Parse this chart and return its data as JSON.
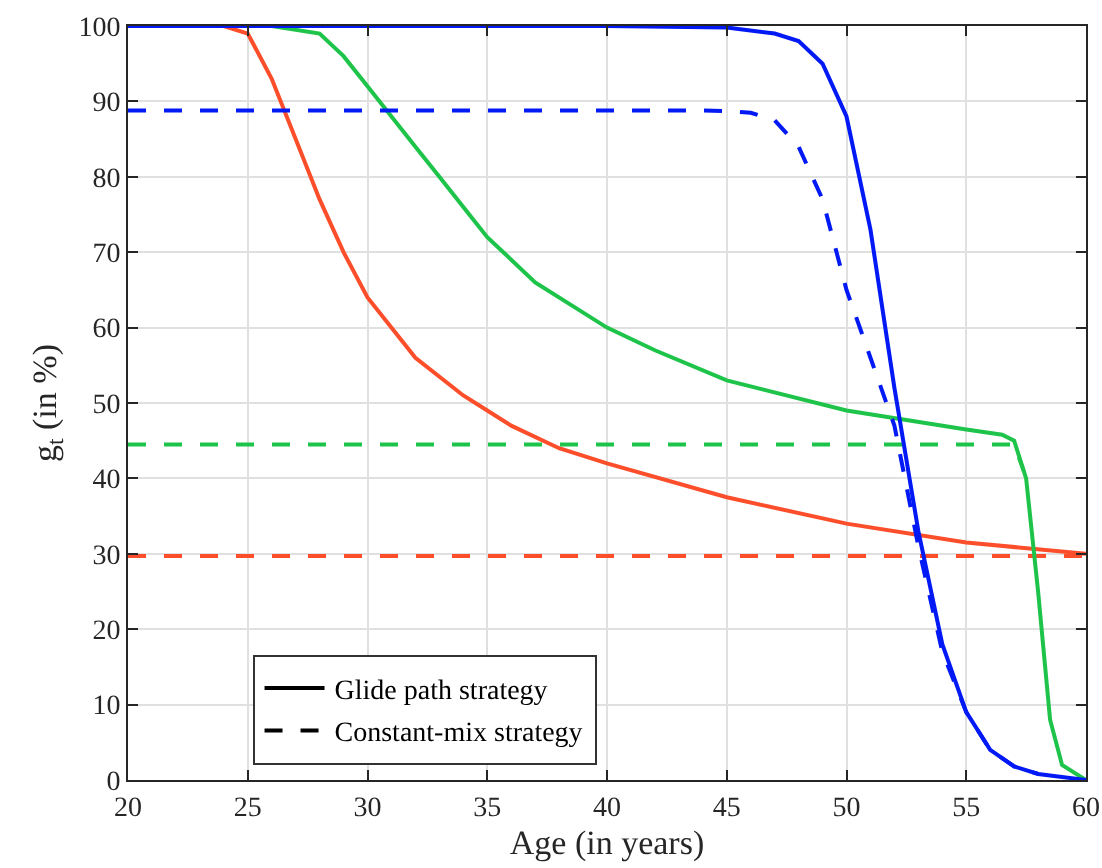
{
  "chart_data": {
    "type": "line",
    "xlabel": "Age (in years)",
    "ylabel": "g$_{t}$ (in %)",
    "xlim": [
      20,
      60
    ],
    "xticks": [
      20,
      25,
      30,
      35,
      40,
      45,
      50,
      55,
      60
    ],
    "ylim": [
      0,
      100
    ],
    "yticks": [
      0,
      10,
      20,
      30,
      40,
      50,
      60,
      70,
      80,
      90,
      100
    ],
    "grid": true,
    "legend": "bottom left",
    "marker": "none",
    "series": [
      {
        "color": "#fc4e2a",
        "line_style": "solid",
        "x": [
          20,
          24,
          25,
          26,
          27,
          28,
          29,
          30,
          32,
          34,
          35,
          36,
          38,
          40,
          45,
          50,
          55,
          60
        ],
        "values": [
          100,
          100,
          99,
          93,
          85,
          77,
          70,
          64,
          56,
          51,
          49,
          47,
          44,
          42,
          37.5,
          34,
          31.5,
          30
        ]
      },
      {
        "color": "#fc4e2a",
        "line_style": "dashed",
        "x": [
          20,
          60
        ],
        "values": [
          29.7,
          29.7
        ]
      },
      {
        "color": "#1ec44a",
        "line_style": "solid",
        "x": [
          20,
          26,
          28,
          29,
          30,
          31,
          32,
          33,
          34,
          35,
          37,
          40,
          42,
          45,
          50,
          55,
          56.5,
          57,
          57.5,
          58,
          58.5,
          59,
          60
        ],
        "values": [
          100,
          100,
          99,
          96,
          92,
          88,
          84,
          80,
          76,
          72,
          66,
          60,
          57,
          53,
          49,
          46.5,
          45.8,
          45,
          40,
          25,
          8,
          2,
          0
        ]
      },
      {
        "color": "#1ec44a",
        "line_style": "dashed",
        "x": [
          20,
          57,
          57.4
        ],
        "values": [
          44.5,
          44.5,
          41
        ]
      },
      {
        "color": "#0019f5",
        "line_style": "solid",
        "x": [
          20,
          40,
          45,
          47,
          48,
          49,
          50,
          51,
          52,
          53,
          54,
          55,
          56,
          57,
          58,
          60
        ],
        "values": [
          100,
          100,
          99.8,
          99,
          98,
          95,
          88,
          73,
          52,
          33,
          18,
          9,
          4,
          1.8,
          0.8,
          0
        ]
      },
      {
        "color": "#0019f5",
        "line_style": "dashed",
        "x": [
          20,
          44,
          45,
          46,
          47,
          48,
          49,
          50,
          51,
          52,
          53,
          54,
          55,
          56,
          57,
          58
        ],
        "values": [
          88.8,
          88.8,
          88.7,
          88.5,
          87.5,
          84,
          77,
          65,
          56,
          47,
          31,
          17,
          9,
          4,
          1.8,
          0.8
        ]
      },
      {
        "name": "Glide path strategy",
        "color": "#000000",
        "line_style": "solid"
      },
      {
        "name": "Constant-mix strategy",
        "color": "#000000",
        "line_style": "dashed"
      }
    ]
  }
}
